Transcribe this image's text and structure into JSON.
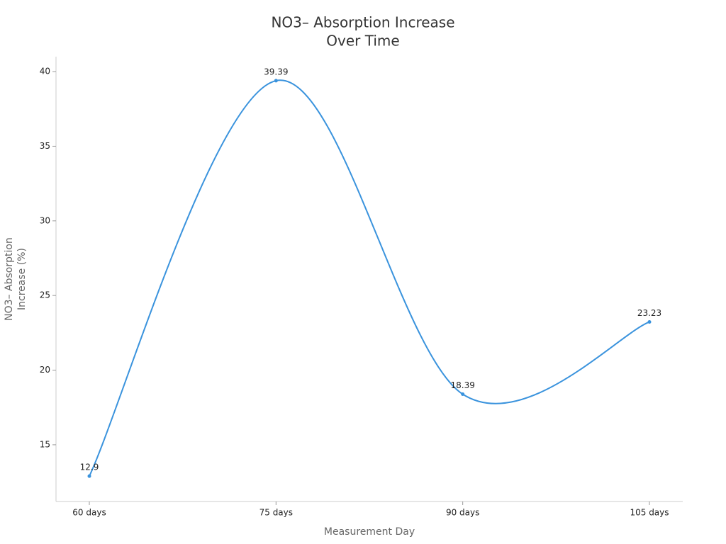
{
  "chart_data": {
    "type": "line",
    "title": [
      "NO3– Absorption Increase",
      "Over Time"
    ],
    "x_label": "Measurement Day",
    "y_label": [
      "NO3– Absorption",
      "Increase (%)"
    ],
    "categories": [
      "60 days",
      "75 days",
      "90 days",
      "105 days"
    ],
    "series": [
      {
        "color": "#3a93dd",
        "values": [
          12.9,
          39.39,
          18.39,
          23.23
        ]
      }
    ],
    "ylim": [
      11.2,
      41
    ],
    "yticks": [
      15,
      20,
      25,
      30,
      35,
      40
    ],
    "grid": false,
    "smooth": true
  }
}
